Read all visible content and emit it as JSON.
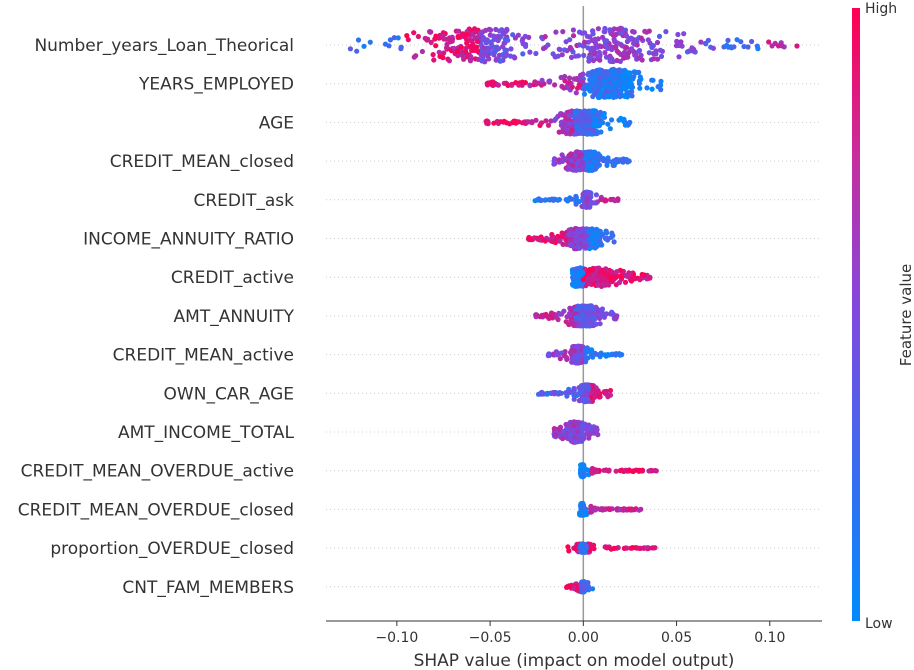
{
  "chart_data": {
    "type": "scatter",
    "subtype": "shap-beeswarm",
    "title": "",
    "xlabel": "SHAP value (impact on model output)",
    "ylabel": "",
    "xlim": [
      -0.138,
      0.128
    ],
    "xticks": [
      -0.1,
      -0.05,
      0.0,
      0.05,
      0.1
    ],
    "xtick_labels": [
      "−0.10",
      "−0.05",
      "0.00",
      "0.05",
      "0.10"
    ],
    "colorbar": {
      "title": "Feature value",
      "high_label": "High",
      "low_label": "Low",
      "high_color": "#ff0052",
      "low_color": "#008bfb"
    },
    "features": [
      {
        "name": "Number_years_Loan_Theorical",
        "min": -0.128,
        "max": 0.116,
        "dense": [
          -0.075,
          0.06
        ],
        "peaks": [
          -0.058,
          0.015
        ],
        "width": 1.0,
        "segments": [
          [
            -0.128,
            -0.095,
            0.2
          ],
          [
            -0.095,
            -0.055,
            0.85
          ],
          [
            -0.055,
            -0.03,
            0.45
          ],
          [
            -0.03,
            0.0,
            0.55
          ],
          [
            0.0,
            0.04,
            0.55
          ],
          [
            0.04,
            0.07,
            0.45
          ],
          [
            0.07,
            0.098,
            0.25
          ],
          [
            0.098,
            0.116,
            0.75
          ]
        ]
      },
      {
        "name": "YEARS_EMPLOYED",
        "min": -0.054,
        "max": 0.043,
        "dense": [
          -0.03,
          0.03
        ],
        "peaks": [
          0.015
        ],
        "width": 0.85,
        "segments": [
          [
            -0.054,
            -0.03,
            0.9
          ],
          [
            -0.03,
            0.0,
            0.7
          ],
          [
            0.0,
            0.02,
            0.2
          ],
          [
            0.02,
            0.043,
            0.1
          ]
        ]
      },
      {
        "name": "AGE",
        "min": -0.053,
        "max": 0.025,
        "dense": [
          -0.02,
          0.01
        ],
        "peaks": [
          -0.005,
          0.004
        ],
        "width": 0.7,
        "segments": [
          [
            -0.053,
            -0.02,
            0.88
          ],
          [
            -0.02,
            -0.005,
            0.65
          ],
          [
            -0.005,
            0.005,
            0.3
          ],
          [
            0.005,
            0.025,
            0.12
          ]
        ]
      },
      {
        "name": "CREDIT_MEAN_closed",
        "min": -0.016,
        "max": 0.025,
        "dense": [
          -0.012,
          0.012
        ],
        "peaks": [
          -0.004,
          0.004
        ],
        "width": 0.55,
        "segments": [
          [
            -0.016,
            0.0,
            0.6
          ],
          [
            0.0,
            0.025,
            0.2
          ]
        ]
      },
      {
        "name": "CREDIT_ask",
        "min": -0.027,
        "max": 0.019,
        "dense": [
          -0.003,
          0.006
        ],
        "peaks": [
          0.002
        ],
        "width": 0.45,
        "segments": [
          [
            -0.027,
            -0.002,
            0.1
          ],
          [
            -0.002,
            0.008,
            0.45
          ],
          [
            0.008,
            0.019,
            0.78
          ]
        ]
      },
      {
        "name": "INCOME_ANNUITY_RATIO",
        "min": -0.03,
        "max": 0.017,
        "dense": [
          -0.015,
          0.01
        ],
        "peaks": [
          -0.003,
          0.004
        ],
        "width": 0.6,
        "segments": [
          [
            -0.03,
            -0.008,
            0.85
          ],
          [
            -0.008,
            0.002,
            0.55
          ],
          [
            0.002,
            0.017,
            0.15
          ]
        ]
      },
      {
        "name": "CREDIT_active",
        "min": -0.006,
        "max": 0.036,
        "dense": [
          -0.005,
          0.03
        ],
        "peaks": [
          -0.003,
          0.01
        ],
        "width": 0.55,
        "segments": [
          [
            -0.006,
            0.0,
            0.08
          ],
          [
            0.0,
            0.036,
            0.88
          ]
        ]
      },
      {
        "name": "AMT_ANNUITY",
        "min": -0.026,
        "max": 0.018,
        "dense": [
          -0.01,
          0.012
        ],
        "peaks": [
          -0.002,
          0.003
        ],
        "width": 0.6,
        "segments": [
          [
            -0.026,
            -0.004,
            0.7
          ],
          [
            -0.004,
            0.008,
            0.4
          ],
          [
            0.008,
            0.018,
            0.55
          ]
        ]
      },
      {
        "name": "CREDIT_MEAN_active",
        "min": -0.019,
        "max": 0.021,
        "dense": [
          -0.012,
          0.006
        ],
        "peaks": [
          -0.003
        ],
        "width": 0.5,
        "segments": [
          [
            -0.019,
            0.0,
            0.55
          ],
          [
            0.0,
            0.021,
            0.12
          ]
        ]
      },
      {
        "name": "OWN_CAR_AGE",
        "min": -0.025,
        "max": 0.015,
        "dense": [
          -0.01,
          0.008
        ],
        "peaks": [
          0.002
        ],
        "width": 0.5,
        "segments": [
          [
            -0.025,
            -0.003,
            0.3
          ],
          [
            -0.003,
            0.003,
            0.4
          ],
          [
            0.003,
            0.015,
            0.85
          ]
        ]
      },
      {
        "name": "AMT_INCOME_TOTAL",
        "min": -0.016,
        "max": 0.008,
        "dense": [
          -0.012,
          0.006
        ],
        "peaks": [
          -0.004
        ],
        "width": 0.6,
        "segments": [
          [
            -0.016,
            -0.003,
            0.55
          ],
          [
            -0.003,
            0.008,
            0.45
          ]
        ]
      },
      {
        "name": "CREDIT_MEAN_OVERDUE_active",
        "min": -0.002,
        "max": 0.04,
        "dense": [
          -0.002,
          0.002
        ],
        "peaks": [
          -0.0005
        ],
        "width": 0.35,
        "segments": [
          [
            -0.002,
            0.003,
            0.05
          ],
          [
            0.003,
            0.04,
            0.9
          ]
        ]
      },
      {
        "name": "CREDIT_MEAN_OVERDUE_closed",
        "min": -0.003,
        "max": 0.031,
        "dense": [
          -0.002,
          0.002
        ],
        "peaks": [
          -0.0005
        ],
        "width": 0.35,
        "segments": [
          [
            -0.003,
            0.003,
            0.05
          ],
          [
            0.003,
            0.031,
            0.78
          ]
        ]
      },
      {
        "name": "proportion_OVERDUE_closed",
        "min": -0.011,
        "max": 0.04,
        "dense": [
          -0.006,
          0.014
        ],
        "peaks": [
          0.0
        ],
        "width": 0.25,
        "segments": [
          [
            -0.011,
            -0.002,
            0.9
          ],
          [
            -0.002,
            0.002,
            0.15
          ],
          [
            0.002,
            0.04,
            0.9
          ]
        ]
      },
      {
        "name": "CNT_FAM_MEMBERS",
        "min": -0.009,
        "max": 0.005,
        "dense": [
          -0.002,
          0.002
        ],
        "peaks": [
          0.0
        ],
        "width": 0.3,
        "segments": [
          [
            -0.009,
            -0.002,
            0.85
          ],
          [
            -0.002,
            0.005,
            0.25
          ]
        ]
      }
    ]
  }
}
